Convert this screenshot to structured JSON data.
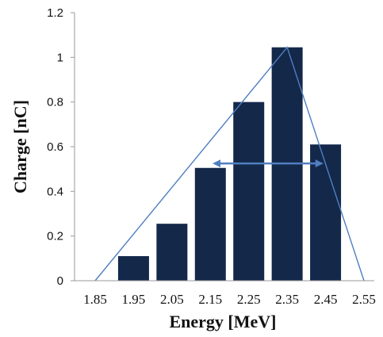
{
  "chart_data": {
    "type": "bar",
    "categories": [
      "1.95",
      "2.05",
      "2.15",
      "2.25",
      "2.35",
      "2.45"
    ],
    "values": [
      0.11,
      0.255,
      0.505,
      0.8,
      1.045,
      0.61
    ],
    "x_ticks": [
      "1.85",
      "1.95",
      "2.05",
      "2.15",
      "2.25",
      "2.35",
      "2.45",
      "2.55"
    ],
    "y_ticks": [
      "0",
      "0.2",
      "0.4",
      "0.6",
      "0.8",
      "1",
      "1.2"
    ],
    "ylim": [
      0,
      1.2
    ],
    "xlabel": "Energy [MeV]",
    "ylabel": "Charge [nC]",
    "grid": false,
    "envelope_line": {
      "x": [
        1.85,
        2.35,
        2.55
      ],
      "y": [
        0,
        1.045,
        0
      ]
    },
    "width_arrow": {
      "x_start": 2.16,
      "x_end": 2.44,
      "y": 0.525
    },
    "colors": {
      "bar": "#14284a",
      "envelope": "#4f7fc0",
      "arrow": "#4f7fc0",
      "axis": "#999999"
    }
  }
}
